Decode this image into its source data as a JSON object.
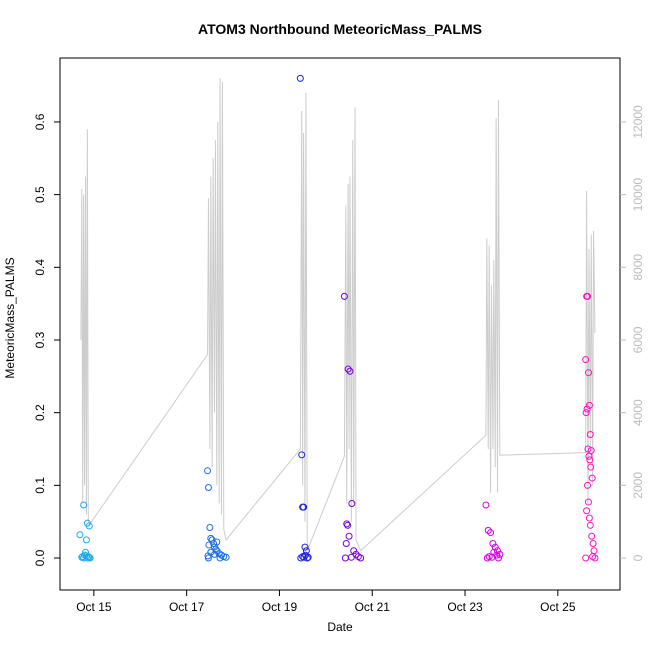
{
  "chart_data": {
    "type": "scatter",
    "title": "ATOM3 Northbound MeteoricMass_PALMS",
    "x_label": "Date",
    "y_label": "MeteoricMass_PALMS",
    "xlim": [
      14.27,
      26.34
    ],
    "xticks": [
      {
        "value": 15,
        "label": "Oct 15"
      },
      {
        "value": 17,
        "label": "Oct 17"
      },
      {
        "value": 19,
        "label": "Oct 19"
      },
      {
        "value": 21,
        "label": "Oct 21"
      },
      {
        "value": 23,
        "label": "Oct 23"
      },
      {
        "value": 25,
        "label": "Oct 25"
      }
    ],
    "ylim": [
      -0.044,
      0.688
    ],
    "yticks": [
      {
        "value": 0,
        "label": "0.0"
      },
      0.1,
      0.2,
      0.3,
      0.4,
      0.5,
      0.6
    ],
    "y2lim": [
      -880,
      13760
    ],
    "y2ticks": [
      0,
      2000,
      4000,
      6000,
      8000,
      10000,
      12000
    ],
    "y2_color": "#bbbbbb",
    "series": [
      {
        "type": "line",
        "axis": "y2",
        "color": "#cccccc",
        "x": [
          14.72,
          14.74,
          14.76,
          14.78,
          14.8,
          14.82,
          14.84,
          14.86,
          14.88,
          14.9,
          14.95,
          17.45,
          17.47,
          17.5,
          17.52,
          17.55,
          17.57,
          17.6,
          17.62,
          17.65,
          17.67,
          17.7,
          17.72,
          17.75,
          17.77,
          17.8,
          17.85,
          19.45,
          19.48,
          19.5,
          19.52,
          19.55,
          19.57,
          19.6,
          20.4,
          20.43,
          20.45,
          20.48,
          20.5,
          20.52,
          20.55,
          20.58,
          20.6,
          20.63,
          20.65,
          20.75,
          23.45,
          23.47,
          23.5,
          23.52,
          23.55,
          23.57,
          23.6,
          23.62,
          23.65,
          23.67,
          23.7,
          23.72,
          23.75,
          25.6,
          25.62,
          25.65,
          25.67,
          25.7,
          25.72,
          25.75,
          25.77,
          25.8
        ],
        "values": [
          6000,
          10150,
          1500,
          10000,
          2000,
          10500,
          1200,
          11800,
          1000,
          900,
          1000,
          5600,
          9900,
          3000,
          10500,
          2500,
          11000,
          4000,
          11500,
          2000,
          12000,
          1500,
          13200,
          1200,
          13100,
          800,
          500,
          3000,
          12300,
          2000,
          11700,
          1000,
          12800,
          200,
          2800,
          9700,
          1500,
          10300,
          3000,
          10500,
          1000,
          11500,
          1500,
          12400,
          500,
          200,
          3380,
          8800,
          3000,
          8600,
          1800,
          7500,
          3000,
          8200,
          2500,
          12100,
          1800,
          12600,
          2830,
          2900,
          10100,
          1500,
          8500,
          3000,
          8900,
          2000,
          9000,
          6200
        ]
      },
      {
        "type": "scatter",
        "color": "#1ea9f0",
        "x": [
          14.7,
          14.74,
          14.76,
          14.78,
          14.8,
          14.82,
          14.84,
          14.86,
          14.88,
          14.9,
          14.92,
          14.78,
          14.86,
          14.9,
          14.84
        ],
        "values": [
          0.032,
          0.001,
          0.002,
          0.0,
          0.004,
          0.008,
          0.003,
          0.0,
          0.002,
          0.001,
          0.0,
          0.073,
          0.048,
          0.044,
          0.025
        ]
      },
      {
        "type": "scatter",
        "color": "#1a6ee8",
        "x": [
          17.45,
          17.47,
          17.5,
          17.52,
          17.55,
          17.58,
          17.6,
          17.63,
          17.65,
          17.7,
          17.75,
          17.8,
          17.85,
          17.47,
          17.46,
          17.48,
          17.52,
          17.6,
          17.65,
          17.72
        ],
        "values": [
          0.12,
          0.097,
          0.042,
          0.027,
          0.025,
          0.02,
          0.015,
          0.012,
          0.01,
          0.006,
          0.004,
          0.002,
          0.001,
          0.0,
          0.003,
          0.018,
          0.008,
          0.005,
          0.022,
          0.0
        ]
      },
      {
        "type": "scatter",
        "color": "#2020e0",
        "x": [
          19.45,
          19.48,
          19.5,
          19.52,
          19.55,
          19.58,
          19.46,
          19.5,
          19.53,
          19.56,
          19.6,
          19.62
        ],
        "values": [
          0.66,
          0.142,
          0.07,
          0.07,
          0.015,
          0.01,
          0.0,
          0.002,
          0.001,
          0.004,
          0.0,
          0.001
        ]
      },
      {
        "type": "scatter",
        "color": "#7a00e0",
        "x": [
          20.4,
          20.48,
          20.52,
          20.56,
          20.45,
          20.47,
          20.5,
          20.44,
          20.6,
          20.65,
          20.7,
          20.75,
          20.42,
          20.55
        ],
        "values": [
          0.36,
          0.26,
          0.257,
          0.075,
          0.047,
          0.045,
          0.03,
          0.02,
          0.01,
          0.005,
          0.002,
          0.0,
          0.0,
          0.001
        ]
      },
      {
        "type": "scatter",
        "color": "#d400e8",
        "x": [
          23.45,
          23.5,
          23.55,
          23.6,
          23.65,
          23.7,
          23.75,
          23.48,
          23.52,
          23.58,
          23.68,
          23.72,
          23.62
        ],
        "values": [
          0.073,
          0.038,
          0.035,
          0.02,
          0.015,
          0.01,
          0.005,
          0.0,
          0.002,
          0.001,
          0.004,
          0.0,
          0.008
        ]
      },
      {
        "type": "scatter",
        "color": "#ff10c8",
        "x": [
          25.62,
          25.64,
          25.6,
          25.66,
          25.68,
          25.61,
          25.63,
          25.7,
          25.65,
          25.72,
          25.67,
          25.69,
          25.71,
          25.74,
          25.64,
          25.66,
          25.62,
          25.68,
          25.7,
          25.73,
          25.76,
          25.78,
          25.8,
          25.6,
          25.75
        ],
        "values": [
          0.36,
          0.36,
          0.273,
          0.255,
          0.21,
          0.2,
          0.205,
          0.17,
          0.15,
          0.148,
          0.14,
          0.135,
          0.125,
          0.11,
          0.1,
          0.077,
          0.065,
          0.055,
          0.045,
          0.03,
          0.02,
          0.01,
          0.0,
          0.0,
          0.002
        ]
      }
    ]
  }
}
